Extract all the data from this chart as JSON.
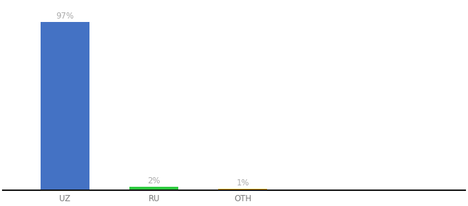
{
  "categories": [
    "UZ",
    "RU",
    "OTH"
  ],
  "values": [
    97,
    2,
    1
  ],
  "bar_colors": [
    "#4472c4",
    "#2ecc40",
    "#f0a500"
  ],
  "labels": [
    "97%",
    "2%",
    "1%"
  ],
  "label_color": "#aaaaaa",
  "background_color": "#ffffff",
  "axis_line_color": "#111111",
  "label_fontsize": 8.5,
  "tick_fontsize": 8.5,
  "tick_color": "#777777",
  "ylim": [
    0,
    108
  ],
  "bar_width": 0.55,
  "x_positions": [
    1,
    2,
    3
  ],
  "xlim": [
    0.3,
    5.5
  ]
}
